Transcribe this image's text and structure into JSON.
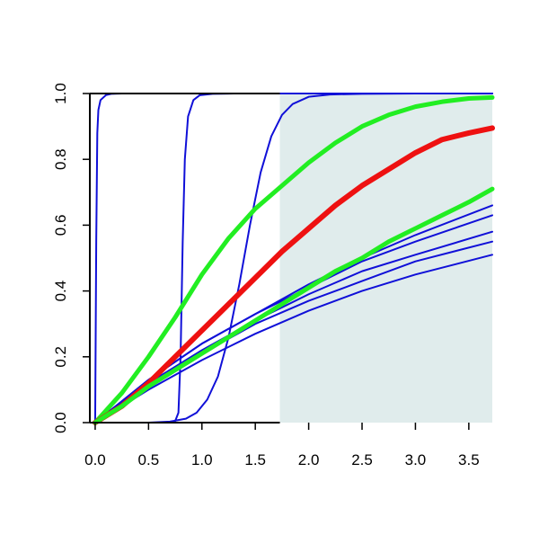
{
  "chart_data": {
    "type": "line",
    "title": "",
    "xlabel": "",
    "ylabel": "",
    "xlim": [
      -0.05,
      3.72
    ],
    "ylim": [
      0.0,
      1.0
    ],
    "x_ticks": [
      0.0,
      0.5,
      1.0,
      1.5,
      2.0,
      2.5,
      3.0,
      3.5
    ],
    "x_tick_labels": [
      "0.0",
      "0.5",
      "1.0",
      "1.5",
      "2.0",
      "2.5",
      "3.0",
      "3.5"
    ],
    "y_ticks": [
      0.0,
      0.2,
      0.4,
      0.6,
      0.8,
      1.0
    ],
    "y_tick_labels": [
      "0.0",
      "0.2",
      "0.4",
      "0.6",
      "0.8",
      "1.0"
    ],
    "grid": false,
    "legend": "none",
    "shaded_region": {
      "x_from": 1.73,
      "x_to": 3.72,
      "color": "#e0ecec"
    },
    "colors": {
      "blue": "#1010d8",
      "green": "#22ee22",
      "red": "#ee1111",
      "shade": "#e0ecec"
    },
    "series": [
      {
        "color": "blue",
        "width": 2,
        "x": [
          0.0,
          0.01,
          0.02,
          0.03,
          0.05,
          0.1,
          0.15,
          0.25,
          3.72
        ],
        "y": [
          0.0,
          0.55,
          0.88,
          0.95,
          0.98,
          0.995,
          0.999,
          1.0,
          1.0
        ]
      },
      {
        "color": "blue",
        "width": 2,
        "x": [
          0.0,
          0.7,
          0.75,
          0.78,
          0.8,
          0.82,
          0.84,
          0.87,
          0.92,
          0.98,
          1.1,
          1.3,
          3.72
        ],
        "y": [
          0.0,
          0.0,
          0.005,
          0.03,
          0.2,
          0.55,
          0.8,
          0.93,
          0.98,
          0.995,
          0.999,
          1.0,
          1.0
        ]
      },
      {
        "color": "blue",
        "width": 2,
        "x": [
          0.0,
          0.5,
          0.7,
          0.85,
          0.95,
          1.05,
          1.15,
          1.25,
          1.35,
          1.45,
          1.55,
          1.65,
          1.75,
          1.85,
          2.0,
          2.2,
          2.5,
          3.0,
          3.72
        ],
        "y": [
          0.0,
          0.0,
          0.003,
          0.012,
          0.03,
          0.07,
          0.14,
          0.26,
          0.42,
          0.6,
          0.76,
          0.87,
          0.935,
          0.968,
          0.99,
          0.997,
          0.999,
          1.0,
          1.0
        ]
      },
      {
        "color": "blue",
        "width": 2,
        "x": [
          0.0,
          0.5,
          1.0,
          1.5,
          2.0,
          2.5,
          3.0,
          3.72
        ],
        "y": [
          0.0,
          0.1,
          0.19,
          0.27,
          0.34,
          0.4,
          0.45,
          0.51
        ]
      },
      {
        "color": "blue",
        "width": 2,
        "x": [
          0.0,
          0.5,
          1.0,
          1.5,
          2.0,
          2.5,
          3.0,
          3.72
        ],
        "y": [
          0.0,
          0.11,
          0.21,
          0.3,
          0.37,
          0.43,
          0.49,
          0.55
        ]
      },
      {
        "color": "blue",
        "width": 2,
        "x": [
          0.0,
          0.5,
          1.0,
          1.5,
          2.0,
          2.5,
          3.0,
          3.72
        ],
        "y": [
          0.0,
          0.12,
          0.22,
          0.31,
          0.39,
          0.46,
          0.51,
          0.58
        ]
      },
      {
        "color": "blue",
        "width": 2,
        "x": [
          0.0,
          0.5,
          1.0,
          1.5,
          2.0,
          2.5,
          3.0,
          3.72
        ],
        "y": [
          0.0,
          0.13,
          0.24,
          0.33,
          0.41,
          0.49,
          0.55,
          0.63
        ]
      },
      {
        "color": "blue",
        "width": 2,
        "x": [
          0.0,
          0.5,
          1.0,
          1.5,
          2.0,
          2.5,
          3.0,
          3.72
        ],
        "y": [
          0.0,
          0.13,
          0.24,
          0.33,
          0.42,
          0.5,
          0.57,
          0.66
        ]
      },
      {
        "color": "green",
        "width": 5,
        "x": [
          0.0,
          0.25,
          0.5,
          0.75,
          1.0,
          1.25,
          1.5,
          1.75,
          2.0,
          2.25,
          2.5,
          2.75,
          3.0,
          3.25,
          3.5,
          3.72
        ],
        "y": [
          0.0,
          0.09,
          0.2,
          0.32,
          0.45,
          0.56,
          0.65,
          0.72,
          0.79,
          0.85,
          0.9,
          0.935,
          0.96,
          0.975,
          0.985,
          0.988
        ]
      },
      {
        "color": "red",
        "width": 6,
        "x": [
          0.0,
          0.25,
          0.5,
          0.75,
          1.0,
          1.25,
          1.5,
          1.75,
          2.0,
          2.25,
          2.5,
          2.75,
          3.0,
          3.25,
          3.5,
          3.72
        ],
        "y": [
          0.0,
          0.05,
          0.12,
          0.2,
          0.28,
          0.36,
          0.44,
          0.52,
          0.59,
          0.66,
          0.72,
          0.77,
          0.82,
          0.86,
          0.88,
          0.895
        ]
      },
      {
        "color": "green",
        "width": 5,
        "x": [
          0.0,
          0.25,
          0.5,
          0.75,
          1.0,
          1.25,
          1.5,
          1.75,
          2.0,
          2.25,
          2.5,
          2.75,
          3.0,
          3.25,
          3.5,
          3.72
        ],
        "y": [
          0.0,
          0.05,
          0.11,
          0.16,
          0.21,
          0.26,
          0.31,
          0.36,
          0.41,
          0.46,
          0.5,
          0.55,
          0.59,
          0.63,
          0.67,
          0.71
        ]
      }
    ]
  }
}
